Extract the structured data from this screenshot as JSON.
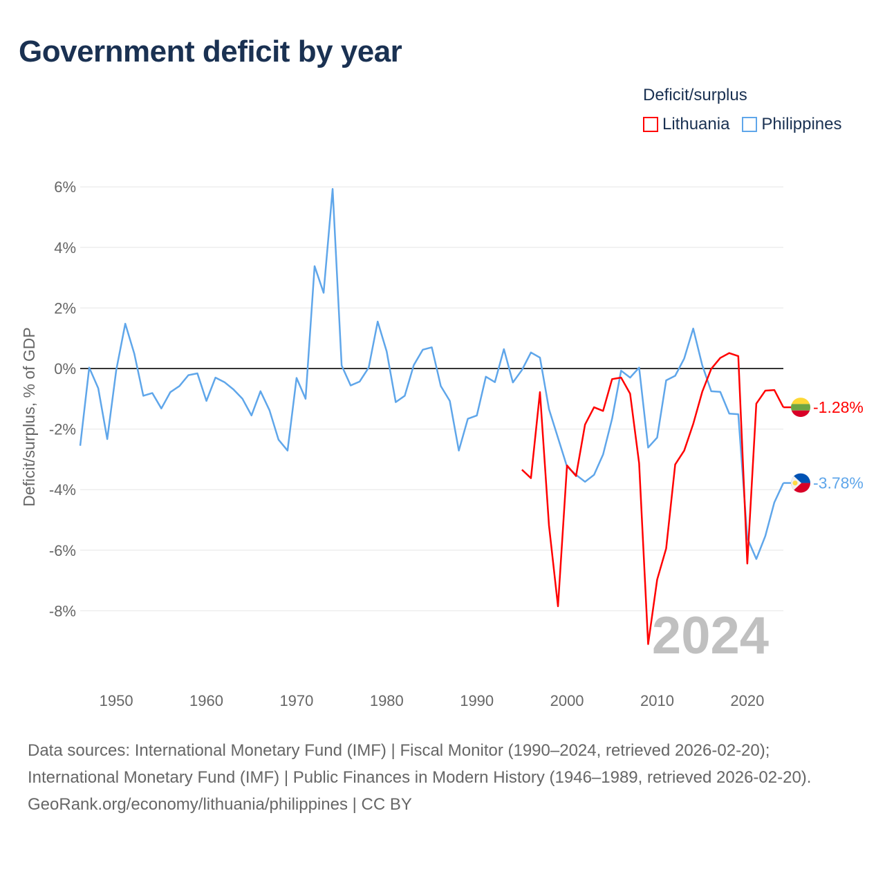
{
  "title": "Government deficit by year",
  "legend": {
    "title": "Deficit/surplus",
    "items": [
      {
        "label": "Lithuania",
        "color": "#ff0000"
      },
      {
        "label": "Philippines",
        "color": "#5fa6ea"
      }
    ]
  },
  "chart_data": {
    "type": "line",
    "title": "Government deficit by year",
    "xlabel": "",
    "ylabel": "Deficit/surplus, % of GDP",
    "xlim": [
      1946,
      2024
    ],
    "ylim": [
      -10,
      6
    ],
    "yticks": [
      6,
      4,
      2,
      0,
      -2,
      -4,
      -6,
      -8
    ],
    "ytick_labels": [
      "6%",
      "4%",
      "2%",
      "0%",
      "-2%",
      "-4%",
      "-6%",
      "-8%"
    ],
    "xticks": [
      1950,
      1960,
      1970,
      1980,
      1990,
      2000,
      2010,
      2020
    ],
    "xtick_labels": [
      "1950",
      "1960",
      "1970",
      "1980",
      "1990",
      "2000",
      "2010",
      "2020"
    ],
    "year_watermark": "2024",
    "grid": true,
    "series": [
      {
        "name": "Lithuania",
        "color": "#ff0000",
        "start_year": 1995,
        "end_label": "-1.28%",
        "values": [
          -3.34,
          -3.62,
          -0.78,
          -5.18,
          -7.85,
          -3.2,
          -3.55,
          -1.85,
          -1.28,
          -1.4,
          -0.35,
          -0.3,
          -0.83,
          -3.13,
          -9.1,
          -6.97,
          -5.94,
          -3.17,
          -2.71,
          -1.83,
          -0.77,
          -0.01,
          0.35,
          0.51,
          0.41,
          -6.44,
          -1.16,
          -0.73,
          -0.71,
          -1.28
        ]
      },
      {
        "name": "Philippines",
        "color": "#5fa6ea",
        "start_year": 1946,
        "end_label": "-3.78%",
        "values": [
          -2.55,
          0.03,
          -0.65,
          -2.33,
          -0.05,
          1.48,
          0.49,
          -0.9,
          -0.81,
          -1.32,
          -0.78,
          -0.58,
          -0.22,
          -0.16,
          -1.07,
          -0.3,
          -0.45,
          -0.69,
          -1.0,
          -1.55,
          -0.75,
          -1.38,
          -2.35,
          -2.71,
          -0.31,
          -1.0,
          3.38,
          2.5,
          5.93,
          0.1,
          -0.56,
          -0.43,
          0.03,
          1.55,
          0.56,
          -1.11,
          -0.9,
          0.11,
          0.62,
          0.7,
          -0.58,
          -1.07,
          -2.71,
          -1.66,
          -1.55,
          -0.27,
          -0.45,
          0.64,
          -0.46,
          -0.05,
          0.53,
          0.36,
          -1.34,
          -2.29,
          -3.24,
          -3.51,
          -3.74,
          -3.51,
          -2.84,
          -1.66,
          -0.07,
          -0.3,
          0.03,
          -2.61,
          -2.28,
          -0.39,
          -0.24,
          0.33,
          1.32,
          0.11,
          -0.75,
          -0.77,
          -1.49,
          -1.51,
          -5.6,
          -6.29,
          -5.53,
          -4.42,
          -3.78
        ]
      }
    ]
  },
  "footer": {
    "sources": "Data sources: International Monetary Fund (IMF) | Fiscal Monitor (1990–2024, retrieved 2026-02-20); International Monetary Fund (IMF) | Public Finances in Modern History (1946–1989, retrieved 2026-02-20).",
    "attribution": "GeoRank.org/economy/lithuania/philippines | CC BY"
  }
}
